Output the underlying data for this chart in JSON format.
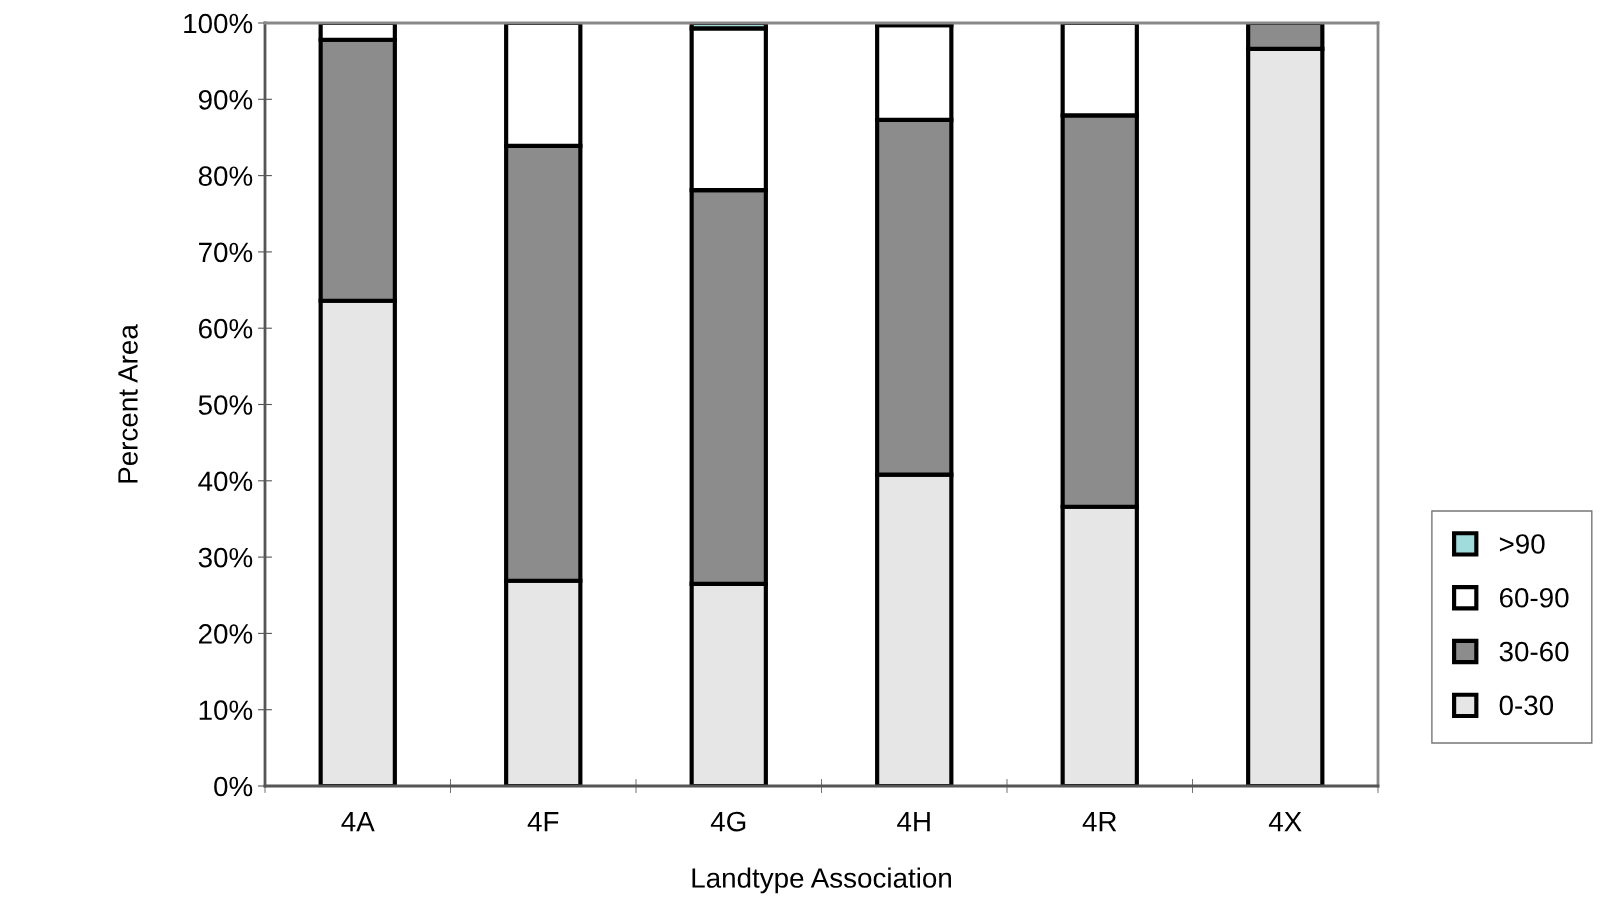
{
  "chart_data": {
    "type": "bar",
    "stacked": true,
    "xlabel": "Landtype Association",
    "ylabel": "Percent Area",
    "categories": [
      "4A",
      "4F",
      "4G",
      "4H",
      "4R",
      "4X"
    ],
    "series": [
      {
        "name": "0-30",
        "color": "#e6e6e6",
        "values": [
          63.6,
          26.9,
          26.5,
          40.8,
          36.6,
          96.6
        ]
      },
      {
        "name": "30-60",
        "color": "#8c8c8c",
        "values": [
          34.2,
          57.0,
          51.6,
          46.5,
          51.3,
          3.4
        ]
      },
      {
        "name": "60-90",
        "color": "#ffffff",
        "values": [
          2.2,
          16.1,
          21.2,
          12.4,
          12.1,
          null
        ]
      },
      {
        "name": ">90",
        "color": "#a0dcdc",
        "values": [
          null,
          null,
          0.7,
          0.3,
          null,
          null
        ]
      }
    ],
    "ylim": [
      0,
      100
    ],
    "yticks": [
      {
        "value": 0,
        "label": "0%"
      },
      {
        "value": 10,
        "label": "10%"
      },
      {
        "value": 20,
        "label": "20%"
      },
      {
        "value": 30,
        "label": "30%"
      },
      {
        "value": 40,
        "label": "40%"
      },
      {
        "value": 50,
        "label": "50%"
      },
      {
        "value": 60,
        "label": "60%"
      },
      {
        "value": 70,
        "label": "70%"
      },
      {
        "value": 80,
        "label": "80%"
      },
      {
        "value": 90,
        "label": "90%"
      },
      {
        "value": 100,
        "label": "100%"
      }
    ],
    "grid": false,
    "legend": "right"
  }
}
